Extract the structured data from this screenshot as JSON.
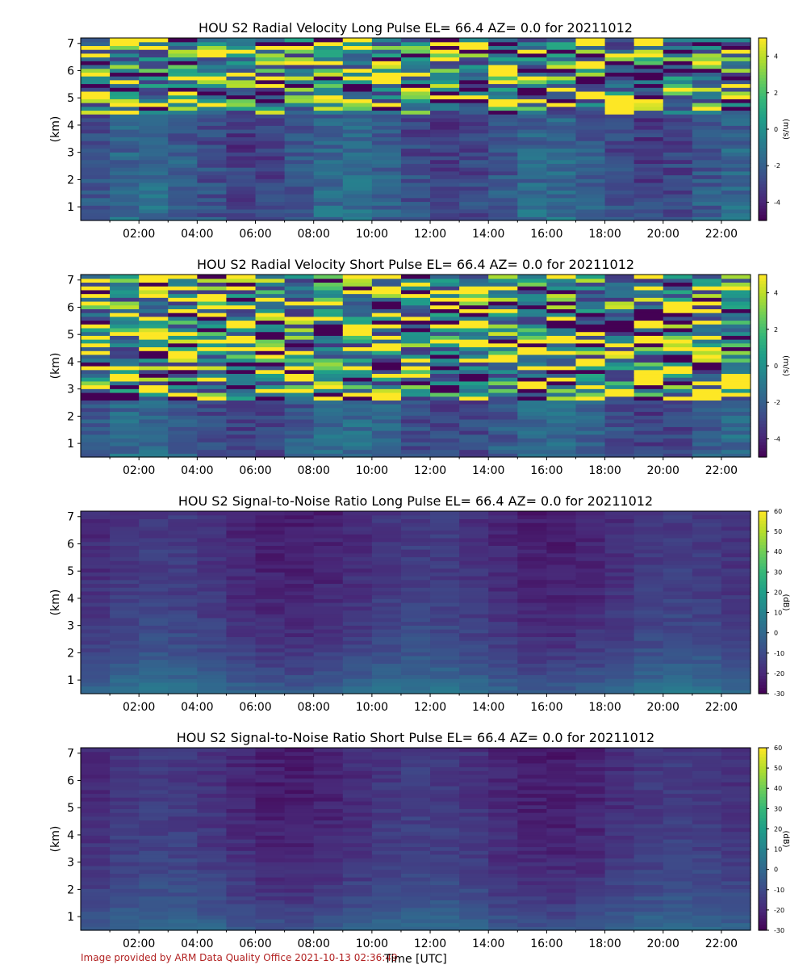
{
  "footer": {
    "credit": "Image provided by ARM Data Quality Office 2021-10-13 02:36:49",
    "xlabel": "Time [UTC]"
  },
  "colormap": [
    "#440154",
    "#482878",
    "#3e4a89",
    "#31688e",
    "#26828e",
    "#1f9e89",
    "#35b779",
    "#6ece58",
    "#b5de2b",
    "#fde725"
  ],
  "chart_data": [
    {
      "type": "heatmap",
      "title": "HOU S2 Radial Velocity Long Pulse EL= 66.4 AZ= 0.0 for 20211012",
      "ylabel": "(km)",
      "xlabel": "",
      "x_ticks": [
        "02:00",
        "04:00",
        "06:00",
        "08:00",
        "10:00",
        "12:00",
        "14:00",
        "16:00",
        "18:00",
        "20:00",
        "22:00"
      ],
      "x_tick_hours": [
        2,
        4,
        6,
        8,
        10,
        12,
        14,
        16,
        18,
        20,
        22
      ],
      "xlim_hours": [
        0,
        23
      ],
      "y_ticks": [
        "1",
        "2",
        "3",
        "4",
        "5",
        "6",
        "7"
      ],
      "y_tick_values": [
        1,
        2,
        3,
        4,
        5,
        6,
        7
      ],
      "ylim": [
        0.5,
        7.2
      ],
      "colorbar": {
        "label": "(m/s)",
        "ticks": [
          "4",
          "2",
          "0",
          "-2",
          "-4"
        ],
        "tick_values": [
          4,
          2,
          0,
          -2,
          -4
        ],
        "range": [
          -5,
          5
        ]
      },
      "field": "radial_velocity",
      "variant": "long",
      "seed": 11
    },
    {
      "type": "heatmap",
      "title": "HOU S2 Radial Velocity Short Pulse EL= 66.4 AZ= 0.0 for 20211012",
      "ylabel": "(km)",
      "xlabel": "",
      "x_ticks": [
        "02:00",
        "04:00",
        "06:00",
        "08:00",
        "10:00",
        "12:00",
        "14:00",
        "16:00",
        "18:00",
        "20:00",
        "22:00"
      ],
      "x_tick_hours": [
        2,
        4,
        6,
        8,
        10,
        12,
        14,
        16,
        18,
        20,
        22
      ],
      "xlim_hours": [
        0,
        23
      ],
      "y_ticks": [
        "1",
        "2",
        "3",
        "4",
        "5",
        "6",
        "7"
      ],
      "y_tick_values": [
        1,
        2,
        3,
        4,
        5,
        6,
        7
      ],
      "ylim": [
        0.5,
        7.2
      ],
      "colorbar": {
        "label": "(m/s)",
        "ticks": [
          "4",
          "2",
          "0",
          "-2",
          "-4"
        ],
        "tick_values": [
          4,
          2,
          0,
          -2,
          -4
        ],
        "range": [
          -5,
          5
        ]
      },
      "field": "radial_velocity",
      "variant": "short",
      "seed": 23
    },
    {
      "type": "heatmap",
      "title": "HOU S2 Signal-to-Noise Ratio Long Pulse EL= 66.4 AZ= 0.0 for 20211012",
      "ylabel": "(km)",
      "xlabel": "",
      "x_ticks": [
        "02:00",
        "04:00",
        "06:00",
        "08:00",
        "10:00",
        "12:00",
        "14:00",
        "16:00",
        "18:00",
        "20:00",
        "22:00"
      ],
      "x_tick_hours": [
        2,
        4,
        6,
        8,
        10,
        12,
        14,
        16,
        18,
        20,
        22
      ],
      "xlim_hours": [
        0,
        23
      ],
      "y_ticks": [
        "1",
        "2",
        "3",
        "4",
        "5",
        "6",
        "7"
      ],
      "y_tick_values": [
        1,
        2,
        3,
        4,
        5,
        6,
        7
      ],
      "ylim": [
        0.5,
        7.2
      ],
      "colorbar": {
        "label": "(dB)",
        "ticks": [
          "60",
          "50",
          "40",
          "30",
          "20",
          "10",
          "0",
          "-10",
          "-20",
          "-30"
        ],
        "tick_values": [
          60,
          50,
          40,
          30,
          20,
          10,
          0,
          -10,
          -20,
          -30
        ],
        "range": [
          -30,
          60
        ]
      },
      "field": "snr",
      "variant": "long",
      "seed": 37
    },
    {
      "type": "heatmap",
      "title": "HOU S2 Signal-to-Noise Ratio Short Pulse EL= 66.4 AZ= 0.0 for 20211012",
      "ylabel": "(km)",
      "xlabel": "Time [UTC]",
      "x_ticks": [
        "02:00",
        "04:00",
        "06:00",
        "08:00",
        "10:00",
        "12:00",
        "14:00",
        "16:00",
        "18:00",
        "20:00",
        "22:00"
      ],
      "x_tick_hours": [
        2,
        4,
        6,
        8,
        10,
        12,
        14,
        16,
        18,
        20,
        22
      ],
      "xlim_hours": [
        0,
        23
      ],
      "y_ticks": [
        "1",
        "2",
        "3",
        "4",
        "5",
        "6",
        "7"
      ],
      "y_tick_values": [
        1,
        2,
        3,
        4,
        5,
        6,
        7
      ],
      "ylim": [
        0.5,
        7.2
      ],
      "colorbar": {
        "label": "(dB)",
        "ticks": [
          "60",
          "50",
          "40",
          "30",
          "20",
          "10",
          "0",
          "-10",
          "-20",
          "-30"
        ],
        "tick_values": [
          60,
          50,
          40,
          30,
          20,
          10,
          0,
          -10,
          -20,
          -30
        ],
        "range": [
          -30,
          60
        ]
      },
      "field": "snr",
      "variant": "short",
      "seed": 53
    }
  ]
}
